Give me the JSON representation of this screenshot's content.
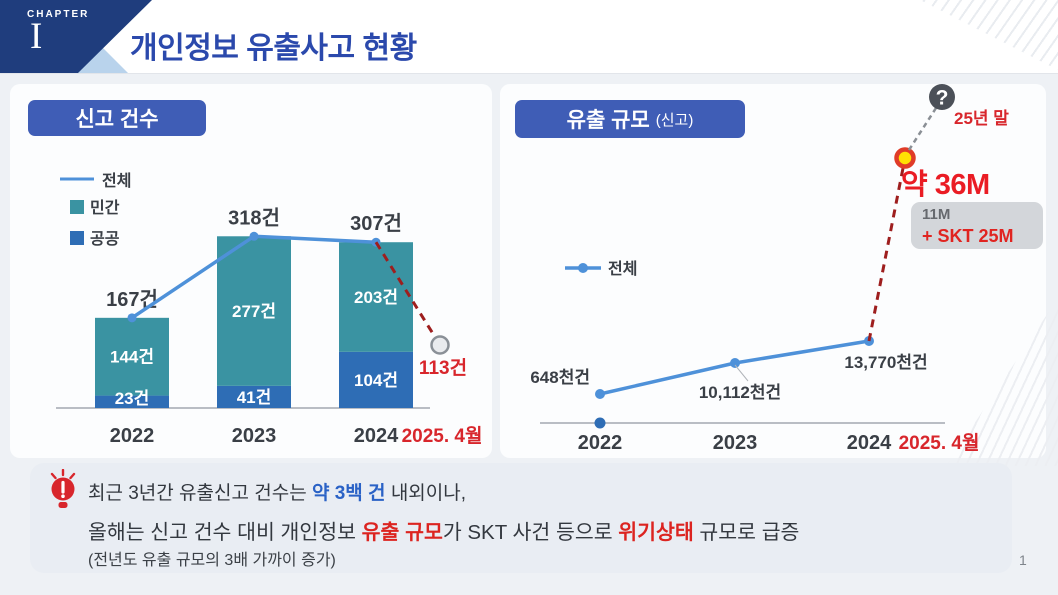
{
  "header": {
    "chapter_label": "CHAPTER",
    "chapter_numeral": "I",
    "title": "개인정보 유출사고 현황"
  },
  "page": {
    "number": "1"
  },
  "colors": {
    "accent_blue": "#2b49ac",
    "box_blue": "#3f5db6",
    "bar_private_teal": "#3a93a2",
    "bar_public_blue": "#2e6db5",
    "line_blue": "#4e91d9",
    "dash_dark_red": "#9e1e1e",
    "label_red": "#d8262c",
    "big_red": "#ea1c24",
    "axis_gray": "#b9bdc4",
    "text_dark": "#3a3f46"
  },
  "chart_data": [
    {
      "type": "bar",
      "title": "신고 건수",
      "categories": [
        "2022",
        "2023",
        "2024"
      ],
      "projection_category": "2025. 4월",
      "series": [
        {
          "name": "공공",
          "values": [
            23,
            41,
            104
          ],
          "labels": [
            "23건",
            "41건",
            "104건"
          ],
          "color": "#2e6db5"
        },
        {
          "name": "민간",
          "values": [
            144,
            277,
            203
          ],
          "labels": [
            "144건",
            "277건",
            "203건"
          ],
          "color": "#3a93a2"
        }
      ],
      "total": {
        "name": "전체",
        "values": [
          167,
          318,
          307
        ],
        "labels": [
          "167건",
          "318건",
          "307건"
        ],
        "color": "#4e91d9"
      },
      "projection": {
        "value": 113,
        "label": "113건"
      },
      "legend": [
        "전체",
        "민간",
        "공공"
      ],
      "stacked": true,
      "ylim": [
        0,
        340
      ]
    },
    {
      "type": "line",
      "title": "유출 규모",
      "title_suffix": "(신고)",
      "categories": [
        "2022",
        "2023",
        "2024"
      ],
      "projection_category": "2025. 4월",
      "series": [
        {
          "name": "전체",
          "unit": "천건",
          "values": [
            648,
            10112,
            13770
          ],
          "labels": [
            "648천건",
            "10,112천건",
            "13,770천건"
          ],
          "color": "#4e91d9"
        }
      ],
      "projection": {
        "label": "약 36M",
        "annotation": "25년 말",
        "breakdown_line1": "11M",
        "breakdown_line2": "+ SKT 25M"
      },
      "legend": [
        "전체"
      ]
    }
  ],
  "callout": {
    "line1_pre": "최근 3년간 유출신고 건수는 ",
    "line1_highlight": "약 3백 건",
    "line1_post": " 내외이나,",
    "line2_pre": "올해는 신고 건수 대비 개인정보 ",
    "line2_red1": "유출 규모",
    "line2_mid": "가  SKT 사건 등으로 ",
    "line2_red2": "위기상태",
    "line2_post": " 규모로 급증",
    "line3": "(전년도 유출 규모의 3배 가까이 증가)"
  }
}
